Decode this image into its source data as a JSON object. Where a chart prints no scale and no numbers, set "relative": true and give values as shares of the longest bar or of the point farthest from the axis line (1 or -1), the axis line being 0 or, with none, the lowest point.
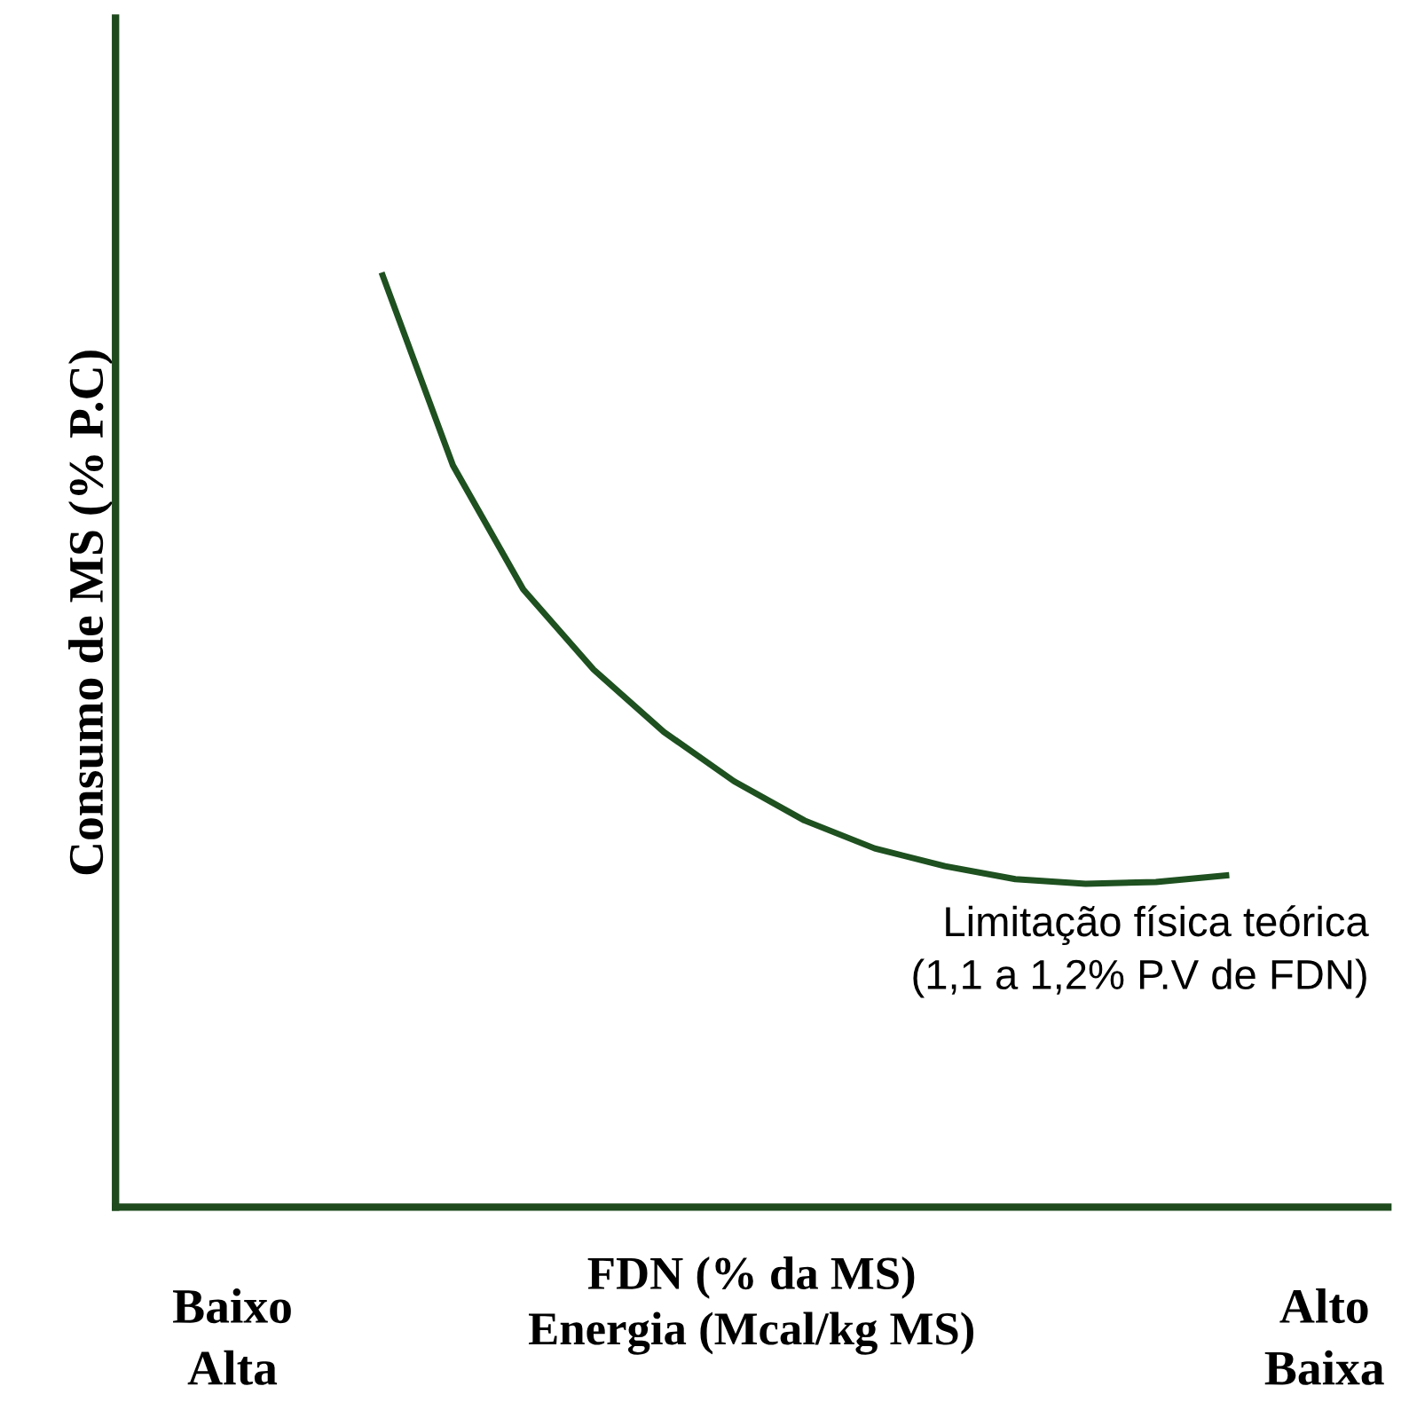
{
  "chart_data": {
    "type": "line",
    "relative": true,
    "ylabel": "Consumo de MS (% P.C)",
    "xlabel": "FDN (% da MS)\nEnergia (Mcal/kg MS)",
    "categories": [
      null,
      null,
      null,
      null,
      null,
      null,
      null,
      null,
      null,
      null,
      null,
      null,
      null
    ],
    "series": [
      {
        "color": "#1e5020",
        "values": [
          1.0,
          0.796,
          0.663,
          0.577,
          0.51,
          0.457,
          0.415,
          0.385,
          0.366,
          0.352,
          0.347,
          0.349,
          0.356
        ]
      }
    ],
    "annotations": [
      "Limitação física teórica\n(1,1 a 1,2% P.V de FDN)",
      "Baixo\nAlta",
      "Alto\nBaixa"
    ],
    "grid": false,
    "legend": false,
    "marker": "none",
    "line_style": "solid",
    "tick_labels": false
  }
}
